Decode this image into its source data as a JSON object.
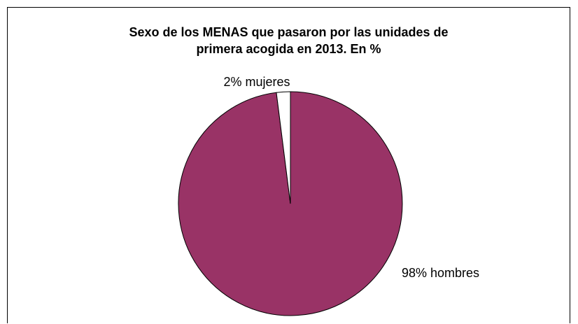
{
  "chart_data": {
    "type": "pie",
    "title": [
      "Sexo de los MENAS que pasaron por las unidades de",
      "primera acogida en 2013. En %"
    ],
    "categories": [
      "hombres",
      "mujeres"
    ],
    "values": [
      98,
      2
    ],
    "labels": [
      "98% hombres",
      "2% mujeres"
    ],
    "colors": [
      "#993366",
      "#ffffff"
    ],
    "legend": "none"
  }
}
